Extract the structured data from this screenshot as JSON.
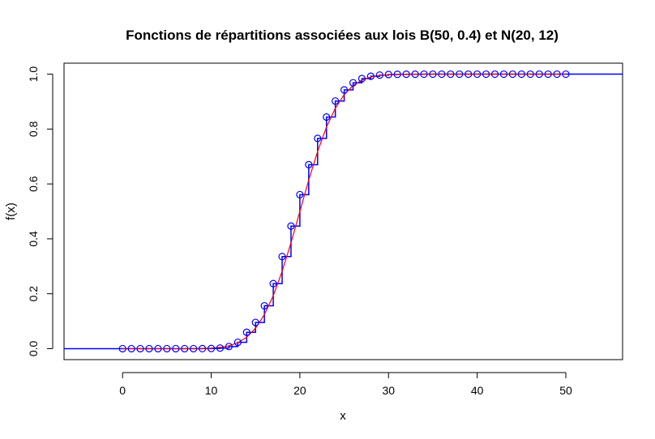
{
  "chart_data": {
    "type": "line",
    "title": "Fonctions de répartitions associées aux lois B(50, 0.4) et N(20, 12)",
    "xlabel": "x",
    "ylabel": "f(x)",
    "xlim": [
      -6.6,
      56.4
    ],
    "ylim": [
      -0.04,
      1.04
    ],
    "xticks": [
      0,
      10,
      20,
      30,
      40,
      50
    ],
    "yticks": [
      0.0,
      0.2,
      0.4,
      0.6,
      0.8,
      1.0
    ],
    "ytick_labels": [
      "0.0",
      "0.2",
      "0.4",
      "0.6",
      "0.8",
      "1.0"
    ],
    "grid": false,
    "legend": "none",
    "series": [
      {
        "type": "step",
        "color": "#0000ff",
        "marker": "open-circle",
        "x": [
          0,
          1,
          2,
          3,
          4,
          5,
          6,
          7,
          8,
          9,
          10,
          11,
          12,
          13,
          14,
          15,
          16,
          17,
          18,
          19,
          20,
          21,
          22,
          23,
          24,
          25,
          26,
          27,
          28,
          29,
          30,
          31,
          32,
          33,
          34,
          35,
          36,
          37,
          38,
          39,
          40,
          41,
          42,
          43,
          44,
          45,
          46,
          47,
          48,
          49,
          50
        ],
        "y": [
          0,
          0,
          0,
          0,
          0,
          0,
          0,
          0,
          0,
          0.0001,
          0.0005,
          0.0022,
          0.0077,
          0.0232,
          0.0595,
          0.0955,
          0.1561,
          0.2369,
          0.3356,
          0.4465,
          0.561,
          0.6701,
          0.766,
          0.8438,
          0.9022,
          0.9427,
          0.9686,
          0.984,
          0.9924,
          0.9966,
          0.9986,
          0.9995,
          0.9998,
          0.9999,
          1,
          1,
          1,
          1,
          1,
          1,
          1,
          1,
          1,
          1,
          1,
          1,
          1,
          1,
          1,
          1,
          1
        ]
      },
      {
        "type": "line",
        "color": "#ff0000",
        "x": [
          0,
          1,
          2,
          3,
          4,
          5,
          6,
          7,
          8,
          9,
          10,
          11,
          12,
          13,
          14,
          15,
          16,
          17,
          18,
          19,
          20,
          21,
          22,
          23,
          24,
          25,
          26,
          27,
          28,
          29,
          30,
          31,
          32,
          33,
          34,
          35,
          36,
          37,
          38,
          39,
          40,
          41,
          42,
          43,
          44,
          45,
          46,
          47,
          48,
          49,
          50
        ],
        "y": [
          0,
          0,
          0,
          0,
          0,
          0,
          0,
          0,
          0.0003,
          0.0008,
          0.0019,
          0.0047,
          0.0104,
          0.0217,
          0.0416,
          0.0745,
          0.1241,
          0.1932,
          0.2818,
          0.3858,
          0.5,
          0.6142,
          0.7182,
          0.8068,
          0.8759,
          0.9255,
          0.9584,
          0.9783,
          0.9896,
          0.9953,
          0.9981,
          0.9992,
          0.9997,
          0.9999,
          1,
          1,
          1,
          1,
          1,
          1,
          1,
          1,
          1,
          1,
          1,
          1,
          1,
          1,
          1,
          1,
          1
        ]
      }
    ]
  }
}
